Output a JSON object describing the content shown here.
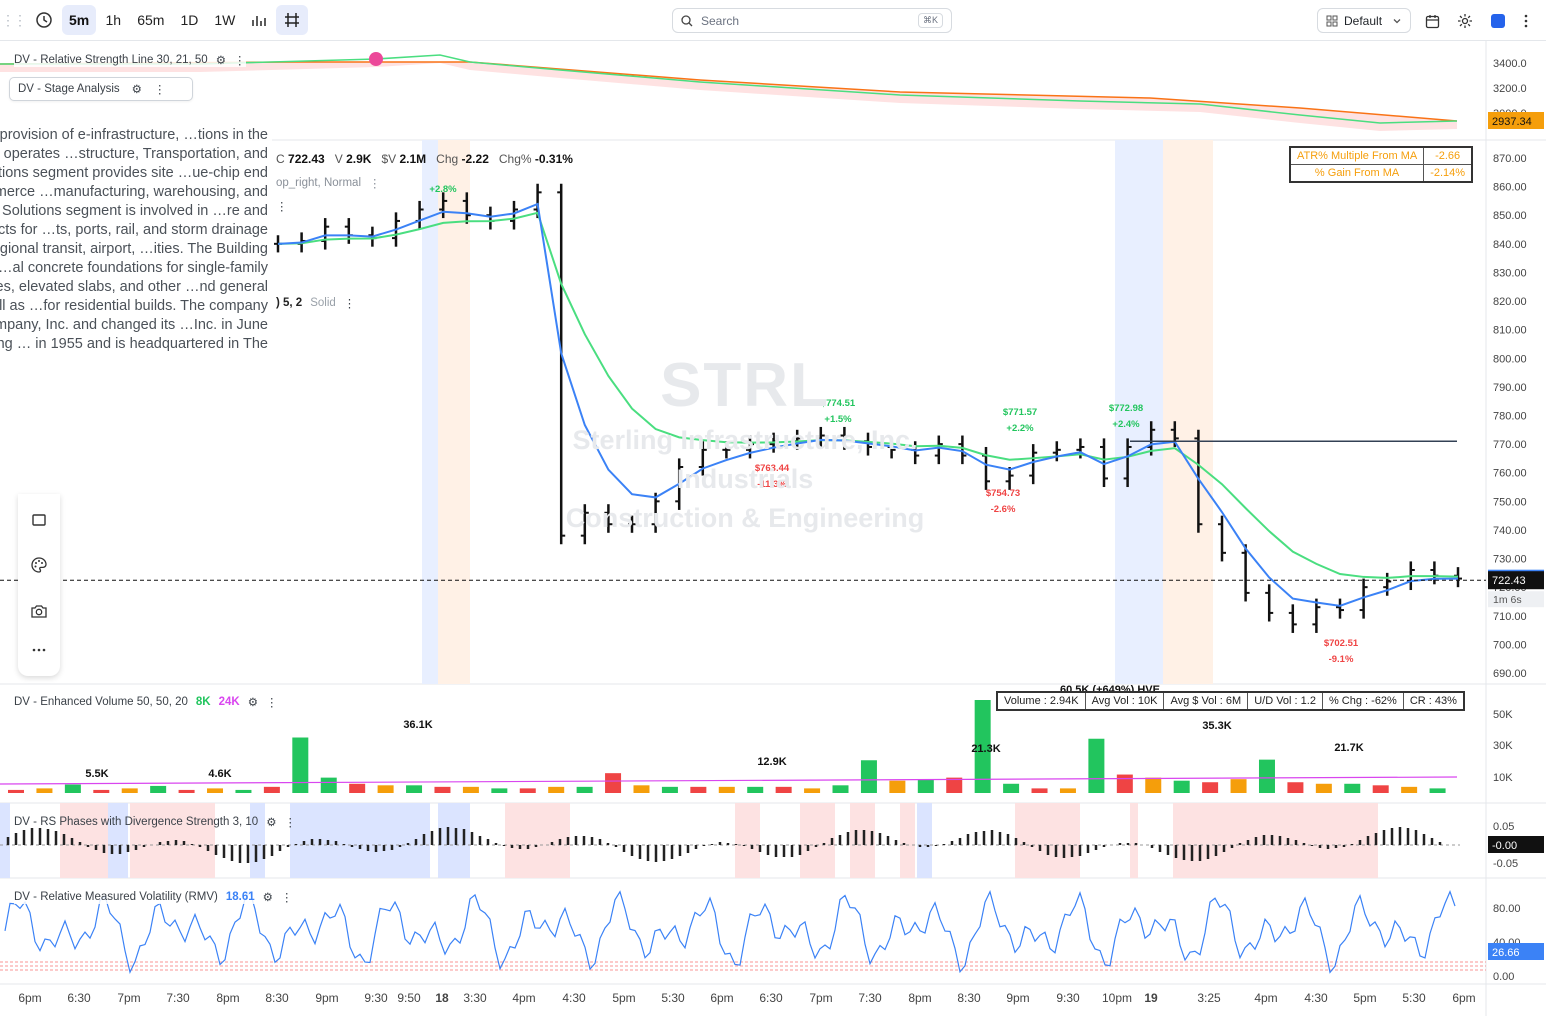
{
  "toolbar": {
    "timeframes": [
      "5m",
      "1h",
      "65m",
      "1D",
      "1W"
    ],
    "active_timeframe": "5m",
    "search_placeholder": "Search",
    "search_shortcut": "⌘K",
    "layout": "Default"
  },
  "symbol": {
    "ticker": "STRL",
    "name": "Sterling Infrastructure, Inc.",
    "sector": "Industrials",
    "industry": "Construction & Engineering",
    "description": "…ages in the provision of e-infrastructure, …tions in the United States. It operates …structure, Transportation, and Building …Solutions segment provides site …ue-chip end users in the e-commerce …manufacturing, warehousing, and power …tation Solutions segment is involved in …re and rehabilitation projects for …ts, ports, rail, and storm drainage …transportation, regional transit, airport, …ities. The Building Solutions segment …al concrete foundations for single-family … structures, elevated slabs, and other …nd general contractors, as well as …for residential builds. The company was …struction Company, Inc. and changed its …Inc. in June 2022. Sterling … in 1955 and is headquartered in The"
  },
  "ohlc": {
    "close_label": "C",
    "close": "722.43",
    "vol_label": "V",
    "vol": "2.9K",
    "dollar_vol_label": "$V",
    "dollar_vol": "2.1M",
    "chg_label": "Chg",
    "chg": "-2.22",
    "chg_pct_label": "Chg%",
    "chg_pct": "-0.31%"
  },
  "indicators": {
    "rs_line": {
      "label": "DV - Relative Strength Line 30, 21, 50",
      "axis_ticks": [
        "3400.0",
        "3200.0",
        "3000.0"
      ],
      "current": "2937.34"
    },
    "stage": {
      "label": "DV - Stage Analysis"
    },
    "overlay_fragment_1": "op_right, Normal",
    "overlay_fragment_2": ") 5, 2",
    "overlay_fragment_3": "Solid",
    "atr_table": [
      {
        "label": "ATR% Multiple From MA",
        "value": "-2.66"
      },
      {
        "label": "% Gain From MA",
        "value": "-2.14%"
      }
    ],
    "volume": {
      "label": "DV - Enhanced Volume 50, 50, 20",
      "v1": "8K",
      "v2": "24K",
      "axis_ticks": [
        "50K",
        "30K",
        "10K"
      ],
      "hve": "60.5K (+649%) HVE",
      "stats": [
        "Volume : 2.94K",
        "Avg Vol : 10K",
        "Avg $ Vol : 6M",
        "U/D Vol : 1.2",
        "% Chg : -62%",
        "CR : 43%"
      ],
      "peak_labels": [
        "5.5K",
        "4.6K",
        "36.1K",
        "12.9K",
        "21.3K",
        "35.3K",
        "21.7K"
      ]
    },
    "rs_phases": {
      "label": "DV - RS Phases with Divergence Strength 3, 10",
      "axis_ticks": [
        "0.05",
        "-0.05"
      ],
      "current": "-0.00"
    },
    "rmv": {
      "label": "DV - Relative Measured Volatility (RMV)",
      "value": "18.61",
      "axis_ticks": [
        "80.00",
        "40.00",
        "0.00"
      ],
      "current": "26.66"
    }
  },
  "price_axis": {
    "ticks": [
      "870.00",
      "860.00",
      "850.00",
      "840.00",
      "830.00",
      "820.00",
      "810.00",
      "800.00",
      "790.00",
      "780.00",
      "770.00",
      "760.00",
      "750.00",
      "740.00",
      "730.00",
      "720.00",
      "710.00",
      "700.00",
      "690.00"
    ],
    "ma_price": "722.96",
    "last_price": "722.43",
    "countdown": "1m 6s"
  },
  "time_axis": [
    "6pm",
    "6:30",
    "7pm",
    "7:30",
    "8pm",
    "8:30",
    "9pm",
    "9:30",
    "9:50",
    "18",
    "3:30",
    "4pm",
    "4:30",
    "5pm",
    "5:30",
    "6pm",
    "6:30",
    "7pm",
    "7:30",
    "8pm",
    "8:30",
    "9pm",
    "9:30",
    "10pm",
    "19",
    "3:25",
    "4pm",
    "4:30",
    "5pm",
    "5:30",
    "6pm"
  ],
  "annotations": [
    {
      "price": "$774.51",
      "pct": "+1.5%",
      "dir": "up"
    },
    {
      "price": "$771.57",
      "pct": "+2.2%",
      "dir": "up"
    },
    {
      "price": "$772.98",
      "pct": "+2.4%",
      "dir": "up"
    },
    {
      "price": "$763.44",
      "pct": "-11.3%",
      "dir": "down"
    },
    {
      "price": "$754.73",
      "pct": "-2.6%",
      "dir": "down"
    },
    {
      "price": "$702.51",
      "pct": "-9.1%",
      "dir": "down"
    },
    {
      "price": "",
      "pct": "+2.8%",
      "dir": "up"
    }
  ],
  "colors": {
    "up": "#22c55e",
    "down": "#ef4444",
    "ema_fast": "#3b82f6",
    "ema_slow": "#4ade80",
    "bar": "#111111",
    "rs_line": "#f97316",
    "accent": "#2563eb",
    "label_orange": "#f59e0b",
    "vol_up": "#22c55e",
    "vol_down": "#ef4444",
    "vol_orange": "#f59e0b",
    "avg_line": "#d946ef"
  },
  "chart_data": {
    "type": "candlestick",
    "series": [
      {
        "name": "Price",
        "values": [
          840,
          841,
          846,
          843,
          842,
          848,
          852,
          855,
          850,
          848,
          852,
          858,
          738,
          746,
          742,
          742,
          750,
          762,
          768,
          768,
          770,
          771,
          772,
          773,
          771,
          769,
          768,
          766,
          770,
          766,
          757,
          759,
          767,
          768,
          769,
          758,
          769,
          775,
          772,
          742,
          732,
          718,
          711,
          707,
          713,
          712,
          720,
          722,
          726,
          724,
          723
        ]
      },
      {
        "name": "Volume (K)",
        "values": [
          2,
          3,
          5.5,
          2,
          3,
          4.6,
          2,
          3,
          2,
          4,
          36.1,
          10,
          6,
          5,
          5,
          4,
          4,
          3,
          3,
          4,
          4,
          12.9,
          5,
          4,
          4,
          4,
          4,
          4,
          3,
          5,
          21.3,
          8,
          9,
          10,
          60.5,
          6,
          3,
          3,
          35.3,
          12,
          10,
          8,
          7,
          9,
          21.7,
          7,
          6,
          6,
          5,
          4,
          3
        ]
      }
    ],
    "xlabel": "",
    "ylabel": ""
  }
}
